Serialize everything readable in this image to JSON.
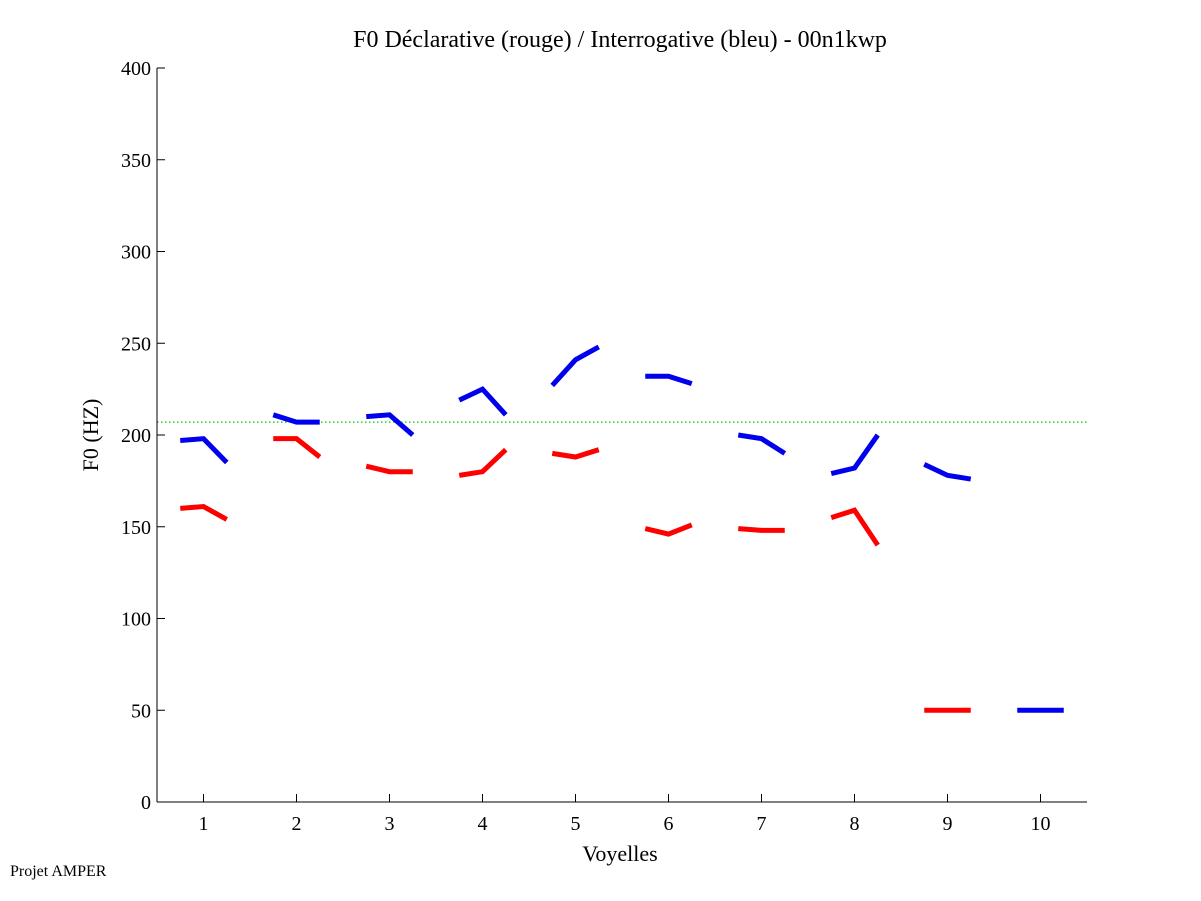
{
  "footer": "Projet AMPER",
  "chart_data": {
    "type": "line",
    "title": "F0 Déclarative (rouge) / Interrogative (bleu) - 00n1kwp",
    "xlabel": "Voyelles",
    "ylabel": "F0 (HZ)",
    "xlim": [
      0.5,
      10.5
    ],
    "ylim": [
      0,
      400
    ],
    "xticks": [
      1,
      2,
      3,
      4,
      5,
      6,
      7,
      8,
      9,
      10
    ],
    "yticks": [
      0,
      50,
      100,
      150,
      200,
      250,
      300,
      350,
      400
    ],
    "grid": false,
    "reference_line": {
      "y": 207,
      "color": "#00cc00",
      "style": "dotted"
    },
    "series": [
      {
        "color": "#ff0000",
        "segments": [
          {
            "x": [
              0.75,
              1.0,
              1.25
            ],
            "y": [
              160,
              161,
              154
            ]
          },
          {
            "x": [
              1.75,
              2.0,
              2.25
            ],
            "y": [
              198,
              198,
              188
            ]
          },
          {
            "x": [
              2.75,
              3.0,
              3.25
            ],
            "y": [
              183,
              180,
              180
            ]
          },
          {
            "x": [
              3.75,
              4.0,
              4.25
            ],
            "y": [
              178,
              180,
              192
            ]
          },
          {
            "x": [
              4.75,
              5.0,
              5.25
            ],
            "y": [
              190,
              188,
              192
            ]
          },
          {
            "x": [
              5.75,
              6.0,
              6.25
            ],
            "y": [
              149,
              146,
              151
            ]
          },
          {
            "x": [
              6.75,
              7.0,
              7.25
            ],
            "y": [
              149,
              148,
              148
            ]
          },
          {
            "x": [
              7.75,
              8.0,
              8.25
            ],
            "y": [
              155,
              159,
              140
            ]
          },
          {
            "x": [
              8.75,
              9.0,
              9.25
            ],
            "y": [
              50,
              50,
              50
            ]
          }
        ]
      },
      {
        "color": "#0000ee",
        "segments": [
          {
            "x": [
              0.75,
              1.0,
              1.25
            ],
            "y": [
              197,
              198,
              185
            ]
          },
          {
            "x": [
              1.75,
              2.0,
              2.25
            ],
            "y": [
              211,
              207,
              207
            ]
          },
          {
            "x": [
              2.75,
              3.0,
              3.25
            ],
            "y": [
              210,
              211,
              200
            ]
          },
          {
            "x": [
              3.75,
              4.0,
              4.25
            ],
            "y": [
              219,
              225,
              211
            ]
          },
          {
            "x": [
              4.75,
              5.0,
              5.25
            ],
            "y": [
              227,
              241,
              248
            ]
          },
          {
            "x": [
              5.75,
              6.0,
              6.25
            ],
            "y": [
              232,
              232,
              228
            ]
          },
          {
            "x": [
              6.75,
              7.0,
              7.25
            ],
            "y": [
              200,
              198,
              190
            ]
          },
          {
            "x": [
              7.75,
              8.0,
              8.25
            ],
            "y": [
              179,
              182,
              200
            ]
          },
          {
            "x": [
              8.75,
              9.0,
              9.25
            ],
            "y": [
              184,
              178,
              176
            ]
          },
          {
            "x": [
              9.75,
              10.0,
              10.25
            ],
            "y": [
              50,
              50,
              50
            ]
          }
        ]
      }
    ]
  }
}
